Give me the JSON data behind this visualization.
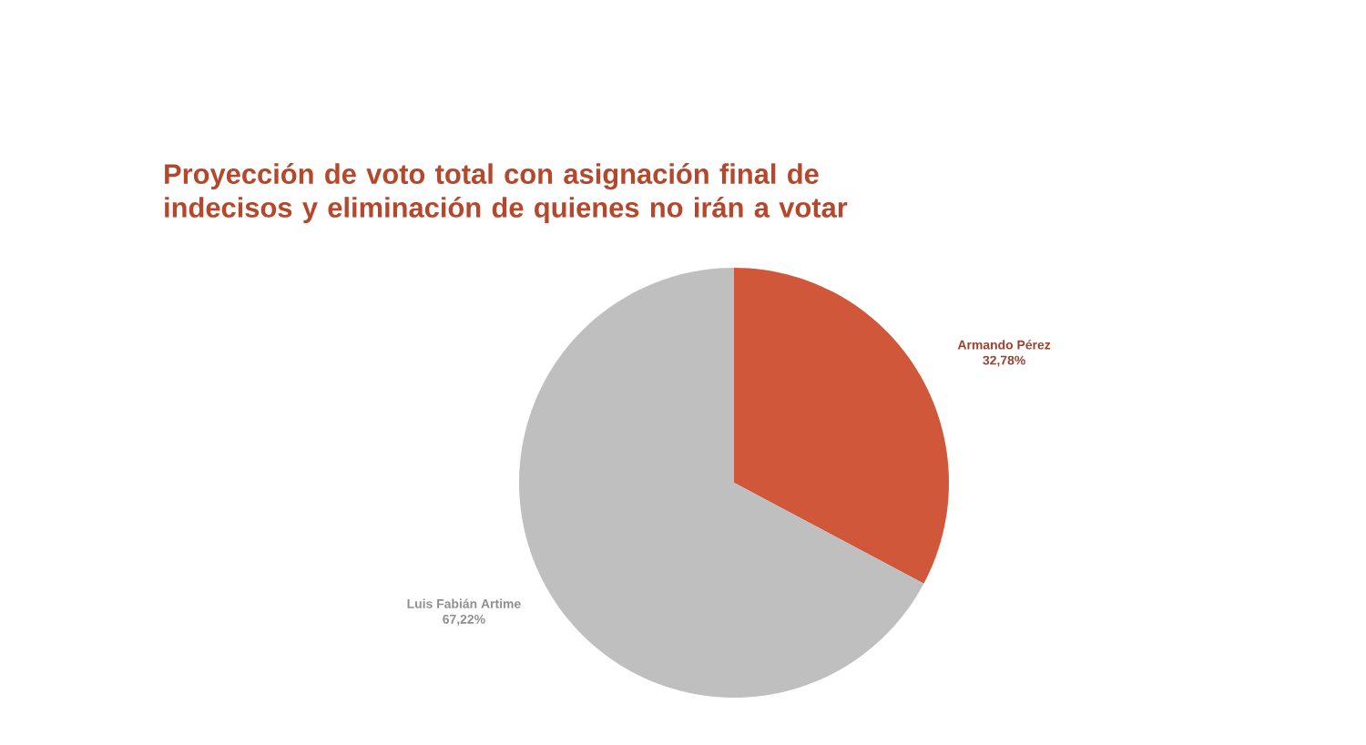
{
  "chart_data": {
    "type": "pie",
    "title": "Proyección de voto total con asignación final de\nindecisos y eliminación de quienes no irán a votar",
    "categories": [
      "Armando Pérez",
      "Luis Fabián Artime"
    ],
    "values": [
      32.78,
      67.22
    ],
    "value_labels": [
      "32,78%",
      "67,22%"
    ],
    "colors": [
      "#d0573a",
      "#bfbfbf"
    ]
  }
}
